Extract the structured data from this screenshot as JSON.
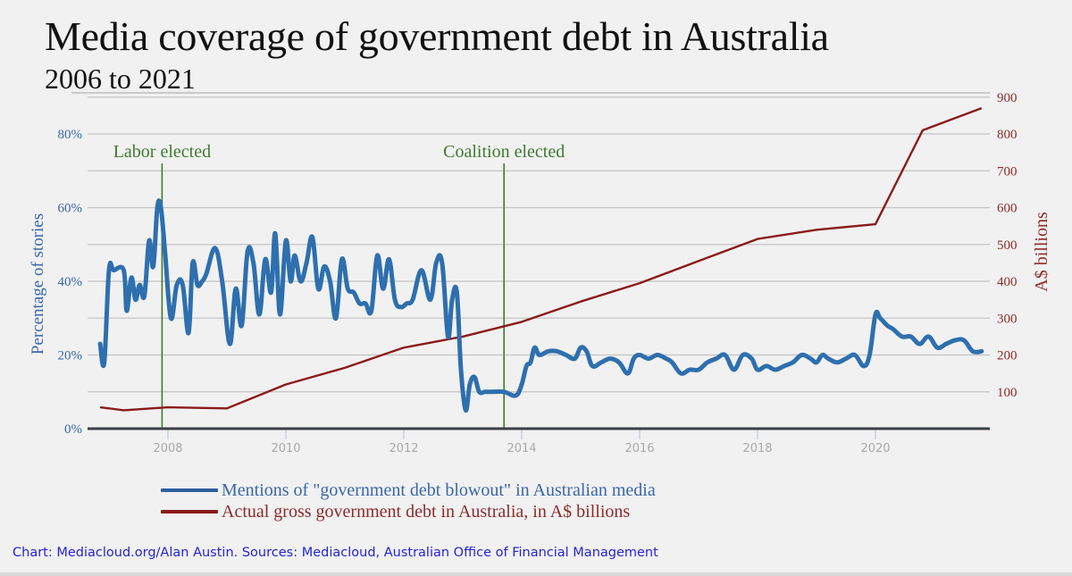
{
  "header": {
    "title": "Media coverage of government debt in Australia",
    "subtitle": "2006 to 2021"
  },
  "colors": {
    "background": "#f1f1f1",
    "media_series": "#2e6fae",
    "debt_series": "#8b1a1a",
    "election_markers": "#3f7a2e",
    "left_axis": "#3a67a8",
    "right_axis": "#8b2b2b",
    "credit": "#2424d6"
  },
  "legend": {
    "items": [
      {
        "label": "Mentions of \"government debt blowout\" in Australian media",
        "color": "#2e6fae"
      },
      {
        "label": "Actual gross government debt in Australia, in A$ billions",
        "color": "#8b1a1a"
      }
    ]
  },
  "credit": "Chart: Mediacloud.org/Alan Austin. Sources: Mediacloud, Australian Office of Financial Management",
  "axes": {
    "left": {
      "label": "Percentage of stories",
      "ticks": [
        "0%",
        "20%",
        "40%",
        "60%",
        "80%"
      ]
    },
    "right": {
      "label": "A$ billions",
      "ticks": [
        "100",
        "200",
        "300",
        "400",
        "500",
        "600",
        "700",
        "800",
        "900"
      ]
    },
    "x": {
      "ticks": [
        "2008",
        "2010",
        "2012",
        "2014",
        "2016",
        "2018",
        "2020"
      ]
    }
  },
  "annotations": [
    {
      "label": "Labor elected",
      "x": 2007.9
    },
    {
      "label": "Coalition elected",
      "x": 2013.7
    }
  ],
  "chart_data": {
    "type": "line",
    "title": "Media coverage of government debt in Australia",
    "subtitle": "2006 to 2021",
    "xlabel": "",
    "ylabel": "Percentage of stories",
    "ylabel_right": "A$ billions",
    "xlim": [
      2006.8,
      2021.8
    ],
    "ylim": [
      0,
      90
    ],
    "ylim_right": [
      0,
      900
    ],
    "grid": true,
    "legend_position": "bottom",
    "series": [
      {
        "name": "Mentions of \"government debt blowout\" in Australian media",
        "axis": "left",
        "unit": "%",
        "x": [
          2006.85,
          2006.92,
          2007.0,
          2007.08,
          2007.25,
          2007.3,
          2007.38,
          2007.45,
          2007.52,
          2007.6,
          2007.68,
          2007.75,
          2007.82,
          2007.88,
          2007.95,
          2008.05,
          2008.15,
          2008.25,
          2008.35,
          2008.42,
          2008.5,
          2008.58,
          2008.65,
          2008.8,
          2008.92,
          2009.05,
          2009.15,
          2009.25,
          2009.35,
          2009.45,
          2009.55,
          2009.65,
          2009.75,
          2009.82,
          2009.9,
          2010.0,
          2010.08,
          2010.15,
          2010.25,
          2010.35,
          2010.45,
          2010.55,
          2010.65,
          2010.75,
          2010.85,
          2010.95,
          2011.05,
          2011.15,
          2011.25,
          2011.35,
          2011.45,
          2011.55,
          2011.65,
          2011.75,
          2011.85,
          2011.95,
          2012.05,
          2012.15,
          2012.3,
          2012.45,
          2012.55,
          2012.65,
          2012.75,
          2012.82,
          2012.9,
          2012.97,
          2013.05,
          2013.12,
          2013.2,
          2013.28,
          2013.38,
          2013.5,
          2013.7,
          2013.9,
          2014.0,
          2014.08,
          2014.15,
          2014.22,
          2014.3,
          2014.45,
          2014.6,
          2014.75,
          2014.9,
          2015.0,
          2015.1,
          2015.2,
          2015.35,
          2015.5,
          2015.65,
          2015.8,
          2015.9,
          2016.0,
          2016.15,
          2016.3,
          2016.45,
          2016.55,
          2016.7,
          2016.85,
          2017.0,
          2017.15,
          2017.3,
          2017.45,
          2017.6,
          2017.75,
          2017.9,
          2018.0,
          2018.15,
          2018.3,
          2018.45,
          2018.6,
          2018.75,
          2018.9,
          2019.0,
          2019.1,
          2019.2,
          2019.35,
          2019.5,
          2019.65,
          2019.8,
          2019.9,
          2020.0,
          2020.08,
          2020.2,
          2020.3,
          2020.45,
          2020.6,
          2020.75,
          2020.9,
          2021.05,
          2021.2,
          2021.35,
          2021.5,
          2021.65,
          2021.8
        ],
        "values": [
          23,
          18,
          43,
          43,
          43,
          32,
          41,
          35,
          39,
          36,
          51,
          44,
          60,
          60,
          48,
          30,
          39,
          39,
          26,
          45,
          39,
          40,
          42,
          49,
          40,
          23,
          38,
          28,
          48,
          45,
          31,
          46,
          37,
          53,
          31,
          51,
          40,
          47,
          40,
          45,
          52,
          38,
          44,
          40,
          30,
          46,
          38,
          37,
          34,
          34,
          32,
          47,
          38,
          46,
          35,
          33,
          34,
          35,
          43,
          35,
          45,
          45,
          25,
          35,
          37,
          16,
          5,
          12,
          14,
          10,
          10,
          10,
          10,
          9,
          12,
          17,
          18,
          22,
          20,
          21,
          21,
          20,
          19,
          22,
          21,
          17,
          18,
          19,
          18,
          15,
          19,
          20,
          19,
          20,
          19,
          18,
          15,
          16,
          16,
          18,
          19,
          20,
          16,
          20,
          19,
          16,
          17,
          16,
          17,
          18,
          20,
          19,
          18,
          20,
          19,
          18,
          19,
          20,
          17,
          20,
          31,
          30,
          28,
          27,
          25,
          25,
          23,
          25,
          22,
          23,
          24,
          24,
          21,
          21
        ],
        "color": "#2e6fae"
      },
      {
        "name": "Actual gross government debt in Australia, in A$ billions",
        "axis": "right",
        "unit": "A$ billions",
        "x": [
          2006.85,
          2007.25,
          2008.0,
          2009.0,
          2010.0,
          2011.0,
          2012.0,
          2013.0,
          2014.0,
          2015.0,
          2016.0,
          2017.0,
          2018.0,
          2019.0,
          2020.0,
          2020.8,
          2021.8
        ],
        "values": [
          58,
          50,
          58,
          55,
          120,
          165,
          220,
          250,
          290,
          345,
          395,
          455,
          515,
          540,
          555,
          810,
          870
        ],
        "color": "#8b1a1a"
      }
    ],
    "annotations": [
      {
        "text": "Labor elected",
        "x": 2007.9
      },
      {
        "text": "Coalition elected",
        "x": 2013.7
      }
    ]
  }
}
